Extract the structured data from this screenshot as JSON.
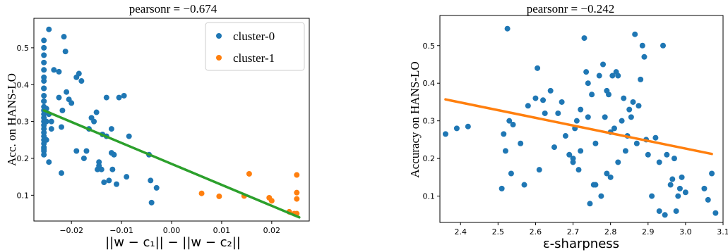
{
  "colors": {
    "cluster0": "#1f77b4",
    "cluster1": "#ff7f0e",
    "fit_left": "#2ca02c",
    "fit_right": "#ff7f0e"
  },
  "chart_data": [
    {
      "type": "scatter",
      "title": "pearsonr = −0.674",
      "xlabel": "||w − c₁|| − ||w − c₂||",
      "ylabel": "Acc. on HANS-LO",
      "xlim": [
        -0.0275,
        0.0275
      ],
      "ylim": [
        0.03,
        0.58
      ],
      "x_ticks": [
        -0.02,
        -0.01,
        0.0,
        0.01,
        0.02
      ],
      "x_tick_labels": [
        "−0.02",
        "−0.01",
        "0.00",
        "0.01",
        "0.02"
      ],
      "y_ticks": [
        0.1,
        0.2,
        0.3,
        0.4,
        0.5
      ],
      "y_tick_labels": [
        "0.1",
        "0.2",
        "0.3",
        "0.4",
        "0.5"
      ],
      "legend_position": "top-right",
      "series": [
        {
          "name": "cluster-0",
          "color": "#1f77b4",
          "x": [
            -0.0255,
            -0.0255,
            -0.0255,
            -0.0255,
            -0.0255,
            -0.0255,
            -0.0255,
            -0.0255,
            -0.0255,
            -0.0255,
            -0.0255,
            -0.0255,
            -0.0255,
            -0.0255,
            -0.0255,
            -0.0255,
            -0.0255,
            -0.0255,
            -0.0255,
            -0.0255,
            -0.0255,
            -0.0255,
            -0.0255,
            -0.0255,
            -0.0255,
            -0.0255,
            -0.0255,
            -0.025,
            -0.025,
            -0.025,
            -0.0245,
            -0.0245,
            -0.0245,
            -0.024,
            -0.024,
            -0.0235,
            -0.0225,
            -0.0225,
            -0.022,
            -0.022,
            -0.0218,
            -0.0215,
            -0.0212,
            -0.021,
            -0.0205,
            -0.02,
            -0.019,
            -0.019,
            -0.0185,
            -0.018,
            -0.0175,
            -0.017,
            -0.0165,
            -0.016,
            -0.0155,
            -0.015,
            -0.0148,
            -0.0145,
            -0.0145,
            -0.014,
            -0.0138,
            -0.0135,
            -0.013,
            -0.013,
            -0.0125,
            -0.012,
            -0.012,
            -0.0118,
            -0.0115,
            -0.011,
            -0.0105,
            -0.0095,
            -0.009,
            -0.0085,
            -0.0045,
            -0.0042,
            -0.004,
            -0.003
          ],
          "y": [
            0.52,
            0.5,
            0.48,
            0.46,
            0.44,
            0.42,
            0.41,
            0.39,
            0.37,
            0.355,
            0.34,
            0.33,
            0.32,
            0.31,
            0.3,
            0.29,
            0.28,
            0.27,
            0.26,
            0.25,
            0.24,
            0.23,
            0.225,
            0.22,
            0.21,
            0.39,
            0.355,
            0.335,
            0.3,
            0.25,
            0.55,
            0.32,
            0.19,
            0.3,
            0.28,
            0.44,
            0.435,
            0.365,
            0.16,
            0.285,
            0.33,
            0.53,
            0.49,
            0.38,
            0.36,
            0.35,
            0.42,
            0.22,
            0.43,
            0.41,
            0.2,
            0.22,
            0.28,
            0.31,
            0.3,
            0.325,
            0.17,
            0.19,
            0.18,
            0.17,
            0.265,
            0.135,
            0.365,
            0.26,
            0.14,
            0.28,
            0.215,
            0.17,
            0.21,
            0.13,
            0.365,
            0.37,
            0.15,
            0.26,
            0.21,
            0.14,
            0.08,
            0.12
          ],
          "note_y_extra": []
        },
        {
          "name": "cluster-1",
          "color": "#ff7f0e",
          "x": [
            0.006,
            0.0095,
            0.0145,
            0.0155,
            0.0195,
            0.02,
            0.0235,
            0.0245,
            0.025,
            0.025,
            0.025,
            0.025
          ],
          "y": [
            0.105,
            0.097,
            0.098,
            0.158,
            0.093,
            0.085,
            0.055,
            0.05,
            0.05,
            0.107,
            0.155,
            0.09
          ]
        },
        {
          "kind": "fit-line",
          "color": "#2ca02c",
          "x": [
            -0.0255,
            0.0255
          ],
          "y": [
            0.33,
            0.04
          ]
        }
      ]
    },
    {
      "type": "scatter",
      "title": "pearsonr = −0.242",
      "xlabel": "ε-sharpness",
      "ylabel": "Accuracy on HANS-LO",
      "xlim": [
        2.345,
        3.1
      ],
      "ylim": [
        0.03,
        0.58
      ],
      "x_ticks": [
        2.4,
        2.5,
        2.6,
        2.7,
        2.8,
        2.9,
        3.0,
        3.1
      ],
      "x_tick_labels": [
        "2.4",
        "2.5",
        "2.6",
        "2.7",
        "2.8",
        "2.9",
        "3.0",
        "3.1"
      ],
      "y_ticks": [
        0.1,
        0.2,
        0.3,
        0.4,
        0.5
      ],
      "y_tick_labels": [
        "0.1",
        "0.2",
        "0.3",
        "0.4",
        "0.5"
      ],
      "series": [
        {
          "kind": "points",
          "color": "#1f77b4",
          "x": [
            2.36,
            2.39,
            2.42,
            2.51,
            2.515,
            2.52,
            2.525,
            2.53,
            2.535,
            2.54,
            2.56,
            2.57,
            2.58,
            2.6,
            2.605,
            2.61,
            2.62,
            2.625,
            2.64,
            2.65,
            2.66,
            2.67,
            2.68,
            2.69,
            2.7,
            2.7,
            2.705,
            2.71,
            2.715,
            2.72,
            2.72,
            2.73,
            2.735,
            2.74,
            2.74,
            2.745,
            2.75,
            2.755,
            2.76,
            2.76,
            2.77,
            2.775,
            2.78,
            2.785,
            2.79,
            2.79,
            2.795,
            2.8,
            2.8,
            2.805,
            2.81,
            2.815,
            2.82,
            2.82,
            2.83,
            2.835,
            2.84,
            2.845,
            2.85,
            2.855,
            2.86,
            2.865,
            2.87,
            2.875,
            2.88,
            2.885,
            2.89,
            2.895,
            2.9,
            2.91,
            2.92,
            2.93,
            2.94,
            2.945,
            2.95,
            2.96,
            2.97,
            2.975,
            2.98,
            2.99,
            3.0,
            3.05,
            3.06,
            3.07
          ],
          "y": [
            0.265,
            0.28,
            0.285,
            0.12,
            0.265,
            0.22,
            0.545,
            0.3,
            0.16,
            0.29,
            0.24,
            0.13,
            0.34,
            0.36,
            0.44,
            0.17,
            0.355,
            0.32,
            0.38,
            0.23,
            0.32,
            0.35,
            0.26,
            0.21,
            0.2,
            0.19,
            0.28,
            0.3,
            0.17,
            0.33,
            0.22,
            0.52,
            0.43,
            0.31,
            0.4,
            0.08,
            0.37,
            0.13,
            0.24,
            0.13,
            0.42,
            0.1,
            0.45,
            0.31,
            0.38,
            0.16,
            0.37,
            0.27,
            0.15,
            0.42,
            0.28,
            0.43,
            0.42,
            0.19,
            0.3,
            0.36,
            0.22,
            0.26,
            0.33,
            0.31,
            0.35,
            0.53,
            0.24,
            0.34,
            0.41,
            0.5,
            0.47,
            0.25,
            0.21,
            0.1,
            0.255,
            0.19,
            0.5,
            0.05,
            0.21,
            0.13,
            0.2,
            0.06,
            0.1,
            0.15,
            0.11,
            0.12,
            0.09,
            0.16
          ],
          "extra_x": [
            3.08,
            2.93,
            2.965,
            2.985
          ],
          "extra_y": [
            0.055,
            0.06,
            0.145,
            0.12
          ]
        },
        {
          "kind": "fit-line",
          "color": "#ff7f0e",
          "x": [
            2.36,
            3.07
          ],
          "y": [
            0.357,
            0.212
          ]
        }
      ]
    }
  ],
  "legend": {
    "items": [
      "cluster-0",
      "cluster-1"
    ]
  }
}
